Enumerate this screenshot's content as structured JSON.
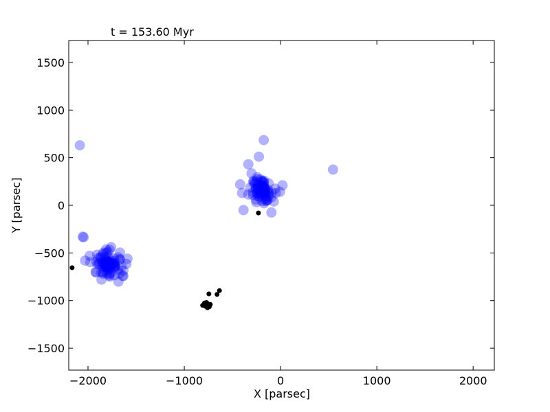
{
  "chart_data": {
    "type": "scatter",
    "title": "t = 153.60 Myr",
    "xlabel": "X [parsec]",
    "ylabel": "Y [parsec]",
    "xlim": [
      -2200,
      2220
    ],
    "ylim": [
      -1730,
      1730
    ],
    "xticks": [
      -2000,
      -1000,
      0,
      1000,
      2000
    ],
    "yticks": [
      -1500,
      -1000,
      -500,
      0,
      500,
      1000,
      1500
    ],
    "xtick_labels": [
      "−2000",
      "−1000",
      "0",
      "1000",
      "2000"
    ],
    "ytick_labels": [
      "−1500",
      "−1000",
      "−500",
      "0",
      "500",
      "1000",
      "1500"
    ],
    "grid": false,
    "series": [
      {
        "color": "#0000ff",
        "opacity": 0.3,
        "marker_size": "large",
        "clusters": [
          {
            "center": [
              -190,
              170
            ],
            "spread": 150,
            "count": 80
          },
          {
            "center": [
              -1800,
              -620
            ],
            "spread": 170,
            "count": 90
          }
        ],
        "points": [
          [
            -2085,
            630
          ],
          [
            -175,
            685
          ],
          [
            -225,
            510
          ],
          [
            -335,
            430
          ],
          [
            545,
            375
          ],
          [
            -385,
            -50
          ],
          [
            -95,
            -75
          ],
          [
            -2055,
            -330
          ],
          [
            -2045,
            -335
          ],
          [
            20,
            210
          ],
          [
            -420,
            220
          ],
          [
            -70,
            40
          ],
          [
            -400,
            130
          ],
          [
            -1590,
            -560
          ],
          [
            -2030,
            -580
          ],
          [
            -1640,
            -740
          ],
          [
            -1860,
            -780
          ],
          [
            -1760,
            -440
          ],
          [
            -1920,
            -700
          ],
          [
            -1650,
            -640
          ]
        ]
      },
      {
        "color": "#000000",
        "opacity": 1.0,
        "marker_size": "small",
        "points": [
          [
            -2165,
            -655
          ],
          [
            -230,
            -80
          ],
          [
            -745,
            -930
          ],
          [
            -635,
            -895
          ],
          [
            -660,
            -935
          ],
          [
            -790,
            -1040
          ],
          [
            -780,
            -1060
          ],
          [
            -760,
            -1030
          ],
          [
            -740,
            -1065
          ],
          [
            -810,
            -1050
          ],
          [
            -770,
            -1020
          ],
          [
            -750,
            -1050
          ],
          [
            -730,
            -1040
          ],
          [
            -790,
            -1025
          ],
          [
            -760,
            -1075
          ]
        ]
      }
    ]
  }
}
